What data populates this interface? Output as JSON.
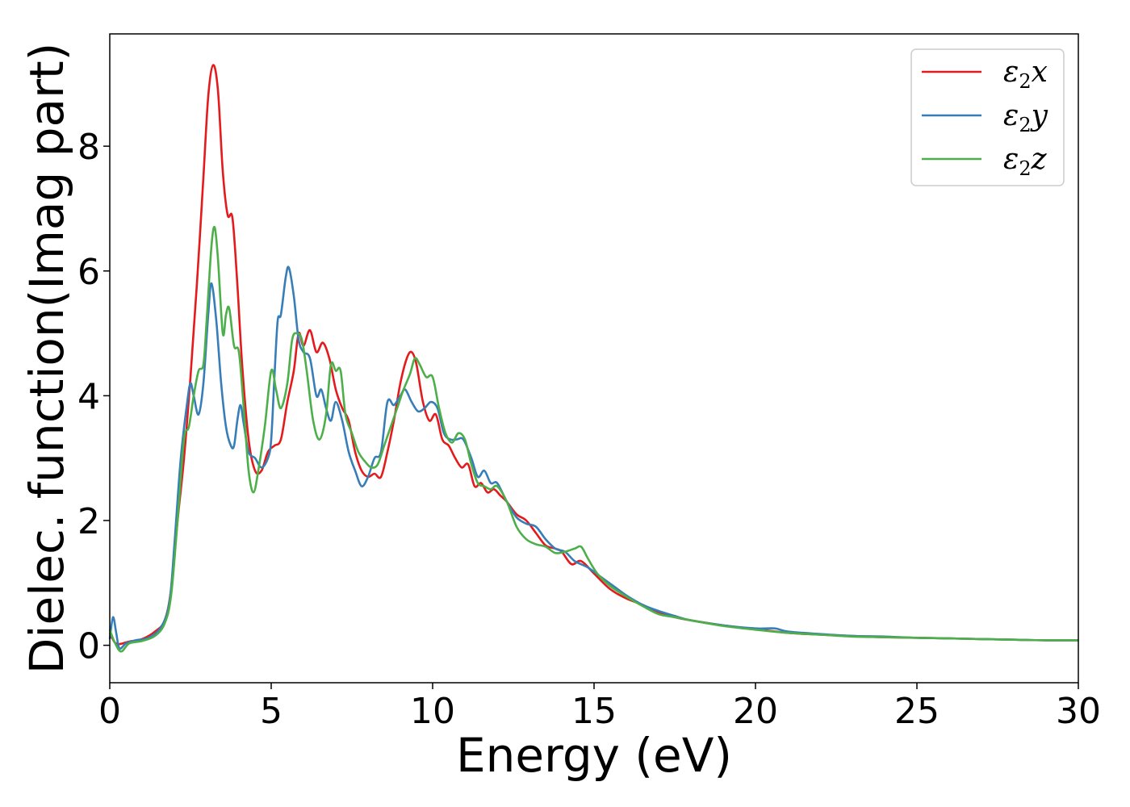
{
  "chart_data": {
    "type": "line",
    "xlabel": "Energy (eV)",
    "ylabel": "Dielec. function(Imag part)",
    "xlim": [
      0,
      30
    ],
    "ylim": [
      -0.6,
      9.8
    ],
    "xticks": [
      0,
      5,
      10,
      15,
      20,
      25,
      30
    ],
    "yticks": [
      0,
      2,
      4,
      6,
      8
    ],
    "grid": false,
    "legend_position": "top-right",
    "series": [
      {
        "name": "ε2x",
        "color": "#e41a1c",
        "points": [
          [
            0,
            0.2
          ],
          [
            0.15,
            0.05
          ],
          [
            0.3,
            0.02
          ],
          [
            0.6,
            0.06
          ],
          [
            1.0,
            0.1
          ],
          [
            1.4,
            0.22
          ],
          [
            1.7,
            0.4
          ],
          [
            1.9,
            0.9
          ],
          [
            2.1,
            2.0
          ],
          [
            2.3,
            3.0
          ],
          [
            2.5,
            4.3
          ],
          [
            2.7,
            5.8
          ],
          [
            2.9,
            7.5
          ],
          [
            3.05,
            8.8
          ],
          [
            3.2,
            9.3
          ],
          [
            3.35,
            8.9
          ],
          [
            3.5,
            7.6
          ],
          [
            3.65,
            6.9
          ],
          [
            3.8,
            6.85
          ],
          [
            3.95,
            5.8
          ],
          [
            4.1,
            4.5
          ],
          [
            4.3,
            3.3
          ],
          [
            4.5,
            2.8
          ],
          [
            4.7,
            2.8
          ],
          [
            4.9,
            3.1
          ],
          [
            5.1,
            3.2
          ],
          [
            5.3,
            3.3
          ],
          [
            5.5,
            3.9
          ],
          [
            5.7,
            4.4
          ],
          [
            5.85,
            5.0
          ],
          [
            6.0,
            4.8
          ],
          [
            6.2,
            5.05
          ],
          [
            6.4,
            4.7
          ],
          [
            6.6,
            4.85
          ],
          [
            6.8,
            4.6
          ],
          [
            7.0,
            4.1
          ],
          [
            7.2,
            3.8
          ],
          [
            7.4,
            3.6
          ],
          [
            7.6,
            3.1
          ],
          [
            7.8,
            2.8
          ],
          [
            8.0,
            2.7
          ],
          [
            8.2,
            2.75
          ],
          [
            8.4,
            2.7
          ],
          [
            8.6,
            3.1
          ],
          [
            8.8,
            3.6
          ],
          [
            9.0,
            4.2
          ],
          [
            9.2,
            4.6
          ],
          [
            9.35,
            4.7
          ],
          [
            9.5,
            4.5
          ],
          [
            9.7,
            3.9
          ],
          [
            9.9,
            3.6
          ],
          [
            10.1,
            3.7
          ],
          [
            10.3,
            3.3
          ],
          [
            10.5,
            3.2
          ],
          [
            10.7,
            3.0
          ],
          [
            10.9,
            2.85
          ],
          [
            11.1,
            2.9
          ],
          [
            11.3,
            2.55
          ],
          [
            11.5,
            2.6
          ],
          [
            11.7,
            2.45
          ],
          [
            11.9,
            2.5
          ],
          [
            12.1,
            2.4
          ],
          [
            12.3,
            2.3
          ],
          [
            12.6,
            2.1
          ],
          [
            12.9,
            2.0
          ],
          [
            13.2,
            1.8
          ],
          [
            13.5,
            1.6
          ],
          [
            13.8,
            1.55
          ],
          [
            14.0,
            1.5
          ],
          [
            14.3,
            1.3
          ],
          [
            14.6,
            1.35
          ],
          [
            15.0,
            1.15
          ],
          [
            15.5,
            0.9
          ],
          [
            16.0,
            0.75
          ],
          [
            16.5,
            0.65
          ],
          [
            17.0,
            0.52
          ],
          [
            17.5,
            0.45
          ],
          [
            18.0,
            0.4
          ],
          [
            19.0,
            0.32
          ],
          [
            20.0,
            0.26
          ],
          [
            21.0,
            0.2
          ],
          [
            22.0,
            0.17
          ],
          [
            23.0,
            0.15
          ],
          [
            24.0,
            0.13
          ],
          [
            25.0,
            0.12
          ],
          [
            26.0,
            0.11
          ],
          [
            27.0,
            0.1
          ],
          [
            28.0,
            0.09
          ],
          [
            29.0,
            0.08
          ],
          [
            30.0,
            0.08
          ]
        ]
      },
      {
        "name": "ε2y",
        "color": "#377eb8",
        "points": [
          [
            0,
            0.1
          ],
          [
            0.1,
            0.45
          ],
          [
            0.2,
            0.2
          ],
          [
            0.3,
            -0.05
          ],
          [
            0.5,
            0.03
          ],
          [
            0.8,
            0.08
          ],
          [
            1.2,
            0.12
          ],
          [
            1.6,
            0.3
          ],
          [
            1.85,
            0.7
          ],
          [
            2.0,
            1.6
          ],
          [
            2.2,
            3.0
          ],
          [
            2.4,
            3.9
          ],
          [
            2.5,
            4.2
          ],
          [
            2.6,
            4.0
          ],
          [
            2.75,
            3.7
          ],
          [
            2.9,
            4.2
          ],
          [
            3.05,
            5.3
          ],
          [
            3.15,
            5.8
          ],
          [
            3.3,
            5.2
          ],
          [
            3.45,
            4.2
          ],
          [
            3.6,
            3.5
          ],
          [
            3.75,
            3.2
          ],
          [
            3.85,
            3.2
          ],
          [
            3.95,
            3.6
          ],
          [
            4.05,
            3.85
          ],
          [
            4.15,
            3.55
          ],
          [
            4.3,
            3.1
          ],
          [
            4.5,
            3.0
          ],
          [
            4.7,
            2.85
          ],
          [
            4.9,
            3.0
          ],
          [
            5.0,
            3.3
          ],
          [
            5.1,
            4.3
          ],
          [
            5.2,
            5.2
          ],
          [
            5.3,
            5.3
          ],
          [
            5.45,
            5.9
          ],
          [
            5.55,
            6.05
          ],
          [
            5.7,
            5.6
          ],
          [
            5.85,
            4.9
          ],
          [
            6.0,
            4.7
          ],
          [
            6.2,
            4.6
          ],
          [
            6.4,
            4.0
          ],
          [
            6.55,
            4.1
          ],
          [
            6.7,
            3.8
          ],
          [
            6.85,
            3.6
          ],
          [
            7.0,
            3.9
          ],
          [
            7.2,
            3.6
          ],
          [
            7.4,
            3.1
          ],
          [
            7.6,
            2.8
          ],
          [
            7.8,
            2.55
          ],
          [
            8.0,
            2.7
          ],
          [
            8.2,
            3.0
          ],
          [
            8.4,
            3.1
          ],
          [
            8.6,
            3.9
          ],
          [
            8.8,
            3.85
          ],
          [
            9.0,
            4.0
          ],
          [
            9.15,
            4.1
          ],
          [
            9.35,
            3.9
          ],
          [
            9.55,
            3.75
          ],
          [
            9.75,
            3.8
          ],
          [
            9.95,
            3.9
          ],
          [
            10.15,
            3.8
          ],
          [
            10.35,
            3.4
          ],
          [
            10.55,
            3.3
          ],
          [
            10.75,
            3.3
          ],
          [
            10.95,
            3.3
          ],
          [
            11.2,
            3.0
          ],
          [
            11.4,
            2.7
          ],
          [
            11.6,
            2.8
          ],
          [
            11.8,
            2.6
          ],
          [
            12.0,
            2.6
          ],
          [
            12.3,
            2.3
          ],
          [
            12.6,
            2.05
          ],
          [
            12.9,
            1.95
          ],
          [
            13.2,
            1.9
          ],
          [
            13.5,
            1.7
          ],
          [
            13.8,
            1.55
          ],
          [
            14.1,
            1.5
          ],
          [
            14.4,
            1.35
          ],
          [
            14.8,
            1.25
          ],
          [
            15.2,
            1.1
          ],
          [
            15.6,
            0.95
          ],
          [
            16.0,
            0.8
          ],
          [
            16.5,
            0.65
          ],
          [
            17.0,
            0.55
          ],
          [
            17.5,
            0.47
          ],
          [
            18.0,
            0.4
          ],
          [
            19.0,
            0.32
          ],
          [
            20.0,
            0.27
          ],
          [
            20.6,
            0.27
          ],
          [
            21.0,
            0.22
          ],
          [
            22.0,
            0.18
          ],
          [
            23.0,
            0.15
          ],
          [
            24.0,
            0.14
          ],
          [
            25.0,
            0.12
          ],
          [
            26.0,
            0.11
          ],
          [
            27.0,
            0.1
          ],
          [
            28.0,
            0.09
          ],
          [
            29.0,
            0.08
          ],
          [
            30.0,
            0.08
          ]
        ]
      },
      {
        "name": "ε2z",
        "color": "#4daf4a",
        "points": [
          [
            0,
            0.25
          ],
          [
            0.15,
            0.05
          ],
          [
            0.35,
            -0.1
          ],
          [
            0.6,
            0.03
          ],
          [
            1.0,
            0.07
          ],
          [
            1.4,
            0.15
          ],
          [
            1.7,
            0.35
          ],
          [
            1.9,
            0.8
          ],
          [
            2.1,
            2.0
          ],
          [
            2.3,
            3.3
          ],
          [
            2.45,
            3.5
          ],
          [
            2.6,
            4.0
          ],
          [
            2.75,
            4.4
          ],
          [
            2.9,
            4.5
          ],
          [
            3.0,
            5.2
          ],
          [
            3.15,
            6.4
          ],
          [
            3.25,
            6.7
          ],
          [
            3.35,
            6.2
          ],
          [
            3.5,
            5.0
          ],
          [
            3.6,
            5.3
          ],
          [
            3.7,
            5.4
          ],
          [
            3.85,
            4.8
          ],
          [
            4.0,
            4.7
          ],
          [
            4.15,
            3.8
          ],
          [
            4.3,
            2.8
          ],
          [
            4.45,
            2.45
          ],
          [
            4.6,
            2.8
          ],
          [
            4.8,
            3.5
          ],
          [
            5.0,
            4.4
          ],
          [
            5.15,
            4.1
          ],
          [
            5.3,
            3.8
          ],
          [
            5.5,
            4.2
          ],
          [
            5.65,
            4.9
          ],
          [
            5.8,
            5.0
          ],
          [
            5.95,
            4.9
          ],
          [
            6.1,
            4.4
          ],
          [
            6.3,
            3.6
          ],
          [
            6.5,
            3.3
          ],
          [
            6.7,
            3.7
          ],
          [
            6.85,
            4.5
          ],
          [
            7.0,
            4.4
          ],
          [
            7.15,
            4.4
          ],
          [
            7.3,
            3.7
          ],
          [
            7.5,
            3.4
          ],
          [
            7.7,
            3.1
          ],
          [
            7.9,
            2.95
          ],
          [
            8.1,
            2.85
          ],
          [
            8.3,
            2.9
          ],
          [
            8.5,
            3.2
          ],
          [
            8.7,
            3.5
          ],
          [
            8.9,
            3.8
          ],
          [
            9.1,
            4.1
          ],
          [
            9.3,
            4.35
          ],
          [
            9.45,
            4.6
          ],
          [
            9.6,
            4.5
          ],
          [
            9.8,
            4.3
          ],
          [
            10.0,
            4.3
          ],
          [
            10.2,
            3.8
          ],
          [
            10.4,
            3.4
          ],
          [
            10.6,
            3.25
          ],
          [
            10.8,
            3.4
          ],
          [
            11.0,
            3.3
          ],
          [
            11.2,
            2.9
          ],
          [
            11.4,
            2.6
          ],
          [
            11.6,
            2.55
          ],
          [
            11.8,
            2.5
          ],
          [
            12.0,
            2.55
          ],
          [
            12.3,
            2.3
          ],
          [
            12.6,
            1.9
          ],
          [
            12.9,
            1.7
          ],
          [
            13.2,
            1.62
          ],
          [
            13.5,
            1.58
          ],
          [
            13.8,
            1.48
          ],
          [
            14.1,
            1.5
          ],
          [
            14.4,
            1.55
          ],
          [
            14.6,
            1.58
          ],
          [
            14.8,
            1.4
          ],
          [
            15.1,
            1.15
          ],
          [
            15.5,
            0.95
          ],
          [
            16.0,
            0.78
          ],
          [
            16.5,
            0.63
          ],
          [
            17.0,
            0.5
          ],
          [
            17.5,
            0.45
          ],
          [
            18.0,
            0.4
          ],
          [
            19.0,
            0.31
          ],
          [
            20.0,
            0.25
          ],
          [
            21.0,
            0.2
          ],
          [
            22.0,
            0.17
          ],
          [
            23.0,
            0.14
          ],
          [
            24.0,
            0.13
          ],
          [
            25.0,
            0.12
          ],
          [
            26.0,
            0.11
          ],
          [
            27.0,
            0.1
          ],
          [
            28.0,
            0.09
          ],
          [
            29.0,
            0.08
          ],
          [
            30.0,
            0.08
          ]
        ]
      }
    ]
  }
}
